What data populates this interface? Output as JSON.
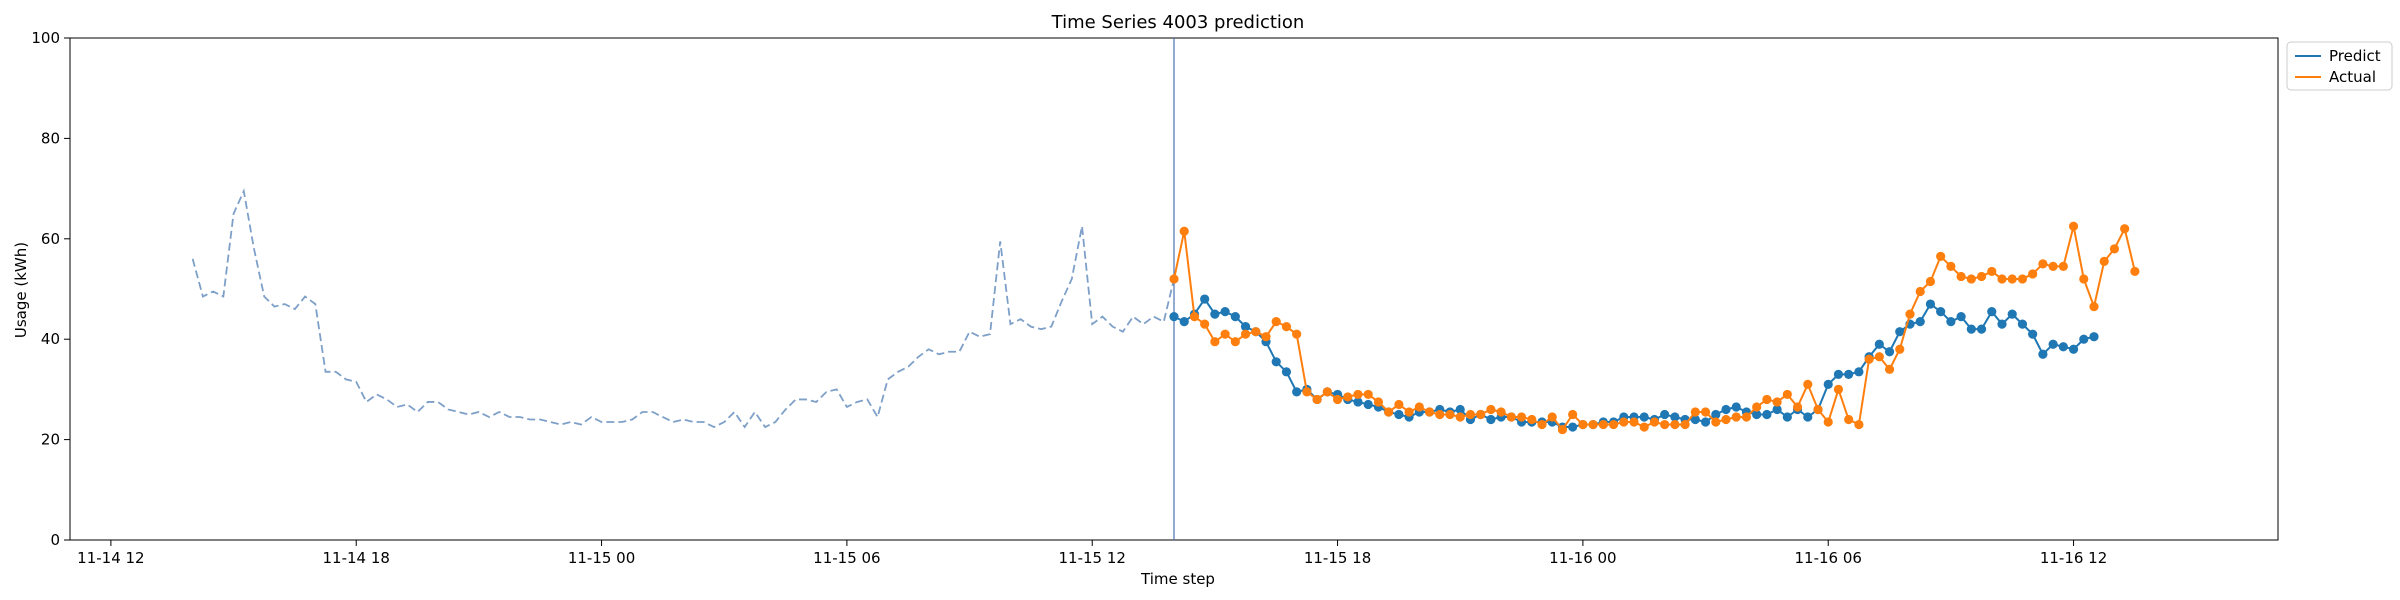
{
  "chart_data": {
    "type": "line",
    "title": "Time Series 4003 prediction",
    "xlabel": "Time step",
    "ylabel": "Usage (kWh)",
    "xlim": [
      "2023-11-14T11:00",
      "2023-11-16T17:00"
    ],
    "ylim": [
      0,
      100
    ],
    "yticks": [
      0,
      20,
      40,
      60,
      80,
      100
    ],
    "xticks": [
      {
        "t": "2023-11-14T12:00",
        "label": "11-14 12"
      },
      {
        "t": "2023-11-14T18:00",
        "label": "11-14 18"
      },
      {
        "t": "2023-11-15T00:00",
        "label": "11-15 00"
      },
      {
        "t": "2023-11-15T06:00",
        "label": "11-15 06"
      },
      {
        "t": "2023-11-15T12:00",
        "label": "11-15 12"
      },
      {
        "t": "2023-11-15T18:00",
        "label": "11-15 18"
      },
      {
        "t": "2023-11-16T00:00",
        "label": "11-16 00"
      },
      {
        "t": "2023-11-16T06:00",
        "label": "11-16 06"
      },
      {
        "t": "2023-11-16T12:00",
        "label": "11-16 12"
      }
    ],
    "grid": false,
    "legend_position": "top-right outside",
    "forecast_start": "2023-11-15T14:00",
    "colors": {
      "history": "#7ea0c8",
      "predict": "#1f77b4",
      "actual": "#ff7f0e",
      "marker_line": "#4c72b0"
    },
    "history": {
      "start": "2023-11-14T14:00",
      "step_minutes": 15,
      "values": [
        56,
        48.5,
        49.5,
        48.5,
        65,
        69.5,
        58,
        48.5,
        46.5,
        47,
        46,
        48.5,
        47,
        33.5,
        33.5,
        32,
        31.5,
        27.5,
        29,
        28,
        26.5,
        27,
        25.5,
        27.5,
        27.5,
        26,
        25.5,
        25,
        25.5,
        24.5,
        25.5,
        24.5,
        24.5,
        24,
        24,
        23.5,
        23,
        23.5,
        23,
        24.5,
        23.5,
        23.5,
        23.5,
        24,
        25.5,
        25.5,
        24.5,
        23.5,
        24,
        23.5,
        23.5,
        22.5,
        23.5,
        25.5,
        22.5,
        25.5,
        22.5,
        23.5,
        26,
        28,
        28,
        27.5,
        29.5,
        30,
        26.5,
        27.5,
        28,
        24.5,
        32,
        33.5,
        34.5,
        36.5,
        38,
        37,
        37.5,
        37.5,
        41.5,
        40.5,
        41,
        59.5,
        43,
        44,
        42.5,
        42,
        42.5,
        47.5,
        52,
        62.5,
        43,
        44.5,
        42.5,
        41.5,
        44.5,
        43,
        44.5,
        43.5,
        52
      ]
    },
    "series": [
      {
        "name": "Predict",
        "start": "2023-11-15T14:00",
        "step_minutes": 15,
        "values": [
          44.5,
          43.5,
          45,
          48,
          45,
          45.5,
          44.5,
          42.5,
          41.5,
          39.5,
          35.5,
          33.5,
          29.5,
          30,
          28,
          29.5,
          29,
          28,
          27.5,
          27,
          26.5,
          25.5,
          25,
          24.5,
          25.5,
          25.5,
          26,
          25.5,
          26,
          24,
          25,
          24,
          24.5,
          24.5,
          23.5,
          23.5,
          23.5,
          23.5,
          22.5,
          22.5,
          23,
          23,
          23.5,
          23.5,
          24.5,
          24.5,
          24.5,
          24,
          25,
          24.5,
          24,
          24,
          23.5,
          25,
          26,
          26.5,
          25.5,
          25,
          25,
          26,
          24.5,
          26,
          24.5,
          26,
          31,
          33,
          33,
          33.5,
          36.5,
          39,
          37.5,
          41.5,
          43,
          43.5,
          47,
          45.5,
          43.5,
          44.5,
          42,
          42,
          45.5,
          43,
          45,
          43,
          41,
          37,
          39,
          38.5,
          38,
          40,
          40.5
        ]
      },
      {
        "name": "Actual",
        "start": "2023-11-15T14:00",
        "step_minutes": 15,
        "values": [
          52,
          61.5,
          44.5,
          43,
          39.5,
          41,
          39.5,
          41,
          41.5,
          40.5,
          43.5,
          42.5,
          41,
          29.5,
          28,
          29.5,
          28,
          28.5,
          29,
          29,
          27.5,
          25.5,
          27,
          25.5,
          26.5,
          25.5,
          25,
          25,
          24.5,
          25,
          25,
          26,
          25.5,
          24.5,
          24.5,
          24,
          23,
          24.5,
          22,
          25,
          23,
          23,
          23,
          23,
          23.5,
          23.5,
          22.5,
          23.5,
          23,
          23,
          23,
          25.5,
          25.5,
          23.5,
          24,
          24.5,
          24.5,
          26.5,
          28,
          27.5,
          29,
          26.5,
          31,
          26,
          23.5,
          30,
          24,
          23,
          36,
          36.5,
          34,
          38,
          45,
          49.5,
          51.5,
          56.5,
          54.5,
          52.5,
          52,
          52.5,
          53.5,
          52,
          52,
          52,
          53,
          55,
          54.5,
          54.5,
          62.5,
          52,
          46.5,
          55.5,
          58,
          62,
          53.5
        ]
      }
    ],
    "legend": [
      "Predict",
      "Actual"
    ]
  }
}
